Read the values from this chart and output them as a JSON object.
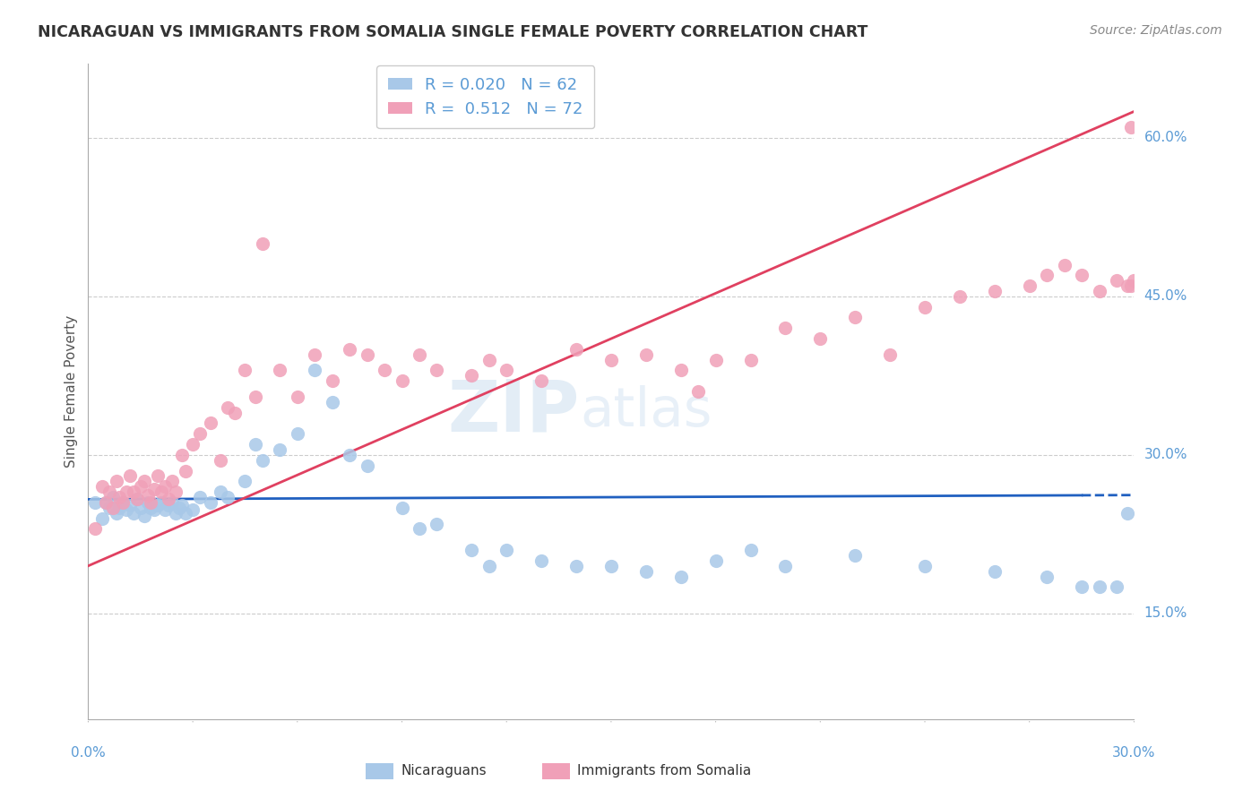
{
  "title": "NICARAGUAN VS IMMIGRANTS FROM SOMALIA SINGLE FEMALE POVERTY CORRELATION CHART",
  "source": "Source: ZipAtlas.com",
  "ylabel": "Single Female Poverty",
  "xlim": [
    0.0,
    0.3
  ],
  "ylim": [
    0.05,
    0.67
  ],
  "watermark_zip": "ZIP",
  "watermark_atlas": "atlas",
  "series1_label": "Nicaraguans",
  "series2_label": "Immigrants from Somalia",
  "series1_color": "#a8c8e8",
  "series2_color": "#f0a0b8",
  "series1_line_color": "#2060c0",
  "series2_line_color": "#e04060",
  "series1_R": "0.020",
  "series2_R": "0.512",
  "series1_N": 62,
  "series2_N": 72,
  "title_color": "#333333",
  "axis_color": "#5b9bd5",
  "grid_color": "#cccccc",
  "background_color": "#ffffff",
  "ytick_vals": [
    0.15,
    0.3,
    0.45,
    0.6
  ],
  "ytick_labels": [
    "15.0%",
    "30.0%",
    "45.0%",
    "60.0%"
  ],
  "series1_x": [
    0.002,
    0.004,
    0.005,
    0.006,
    0.007,
    0.008,
    0.009,
    0.01,
    0.011,
    0.012,
    0.013,
    0.014,
    0.015,
    0.016,
    0.017,
    0.018,
    0.019,
    0.02,
    0.021,
    0.022,
    0.023,
    0.024,
    0.025,
    0.026,
    0.027,
    0.028,
    0.03,
    0.032,
    0.035,
    0.038,
    0.04,
    0.045,
    0.048,
    0.05,
    0.055,
    0.06,
    0.065,
    0.07,
    0.075,
    0.08,
    0.09,
    0.095,
    0.1,
    0.11,
    0.115,
    0.12,
    0.13,
    0.14,
    0.15,
    0.16,
    0.17,
    0.18,
    0.19,
    0.2,
    0.22,
    0.24,
    0.26,
    0.275,
    0.285,
    0.29,
    0.295,
    0.298
  ],
  "series1_y": [
    0.255,
    0.24,
    0.255,
    0.25,
    0.26,
    0.245,
    0.25,
    0.255,
    0.248,
    0.252,
    0.245,
    0.258,
    0.25,
    0.242,
    0.255,
    0.25,
    0.248,
    0.252,
    0.255,
    0.248,
    0.252,
    0.255,
    0.245,
    0.25,
    0.252,
    0.245,
    0.248,
    0.26,
    0.255,
    0.265,
    0.26,
    0.275,
    0.31,
    0.295,
    0.305,
    0.32,
    0.38,
    0.35,
    0.3,
    0.29,
    0.25,
    0.23,
    0.235,
    0.21,
    0.195,
    0.21,
    0.2,
    0.195,
    0.195,
    0.19,
    0.185,
    0.2,
    0.21,
    0.195,
    0.205,
    0.195,
    0.19,
    0.185,
    0.175,
    0.175,
    0.175,
    0.245
  ],
  "series2_x": [
    0.002,
    0.004,
    0.005,
    0.006,
    0.007,
    0.008,
    0.009,
    0.01,
    0.011,
    0.012,
    0.013,
    0.014,
    0.015,
    0.016,
    0.017,
    0.018,
    0.019,
    0.02,
    0.021,
    0.022,
    0.023,
    0.024,
    0.025,
    0.027,
    0.028,
    0.03,
    0.032,
    0.035,
    0.038,
    0.04,
    0.042,
    0.045,
    0.048,
    0.05,
    0.055,
    0.06,
    0.065,
    0.07,
    0.075,
    0.08,
    0.085,
    0.09,
    0.095,
    0.1,
    0.11,
    0.115,
    0.12,
    0.13,
    0.14,
    0.15,
    0.16,
    0.17,
    0.175,
    0.18,
    0.19,
    0.2,
    0.21,
    0.22,
    0.23,
    0.24,
    0.25,
    0.26,
    0.27,
    0.275,
    0.28,
    0.285,
    0.29,
    0.295,
    0.298,
    0.299,
    0.299,
    0.3
  ],
  "series2_y": [
    0.23,
    0.27,
    0.255,
    0.265,
    0.25,
    0.275,
    0.26,
    0.255,
    0.265,
    0.28,
    0.265,
    0.258,
    0.27,
    0.275,
    0.262,
    0.255,
    0.268,
    0.28,
    0.265,
    0.27,
    0.258,
    0.275,
    0.265,
    0.3,
    0.285,
    0.31,
    0.32,
    0.33,
    0.295,
    0.345,
    0.34,
    0.38,
    0.355,
    0.5,
    0.38,
    0.355,
    0.395,
    0.37,
    0.4,
    0.395,
    0.38,
    0.37,
    0.395,
    0.38,
    0.375,
    0.39,
    0.38,
    0.37,
    0.4,
    0.39,
    0.395,
    0.38,
    0.36,
    0.39,
    0.39,
    0.42,
    0.41,
    0.43,
    0.395,
    0.44,
    0.45,
    0.455,
    0.46,
    0.47,
    0.48,
    0.47,
    0.455,
    0.465,
    0.46,
    0.46,
    0.61,
    0.465
  ],
  "series1_trend_x": [
    0.0,
    0.3
  ],
  "series1_trend_y": [
    0.258,
    0.262
  ],
  "series2_trend_x": [
    0.0,
    0.3
  ],
  "series2_trend_y": [
    0.195,
    0.625
  ]
}
